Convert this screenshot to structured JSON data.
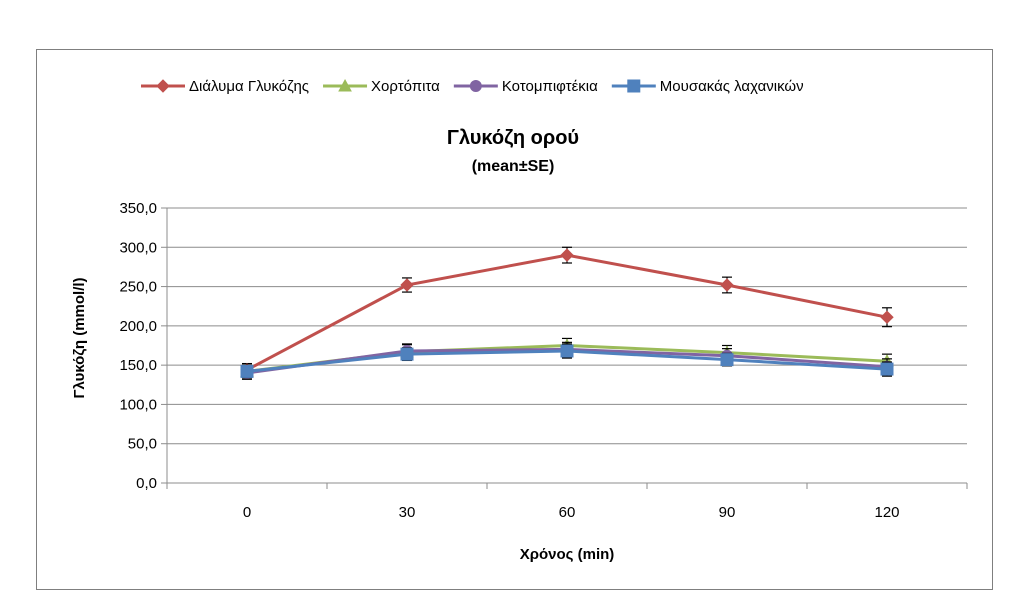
{
  "chart_data": {
    "type": "line",
    "title": "Γλυκόζη ορού",
    "subtitle": "(mean±SE)",
    "xlabel": "Χρόνος (min)",
    "ylabel": "Γλυκόζη (mmol/l)",
    "categories": [
      "0",
      "30",
      "60",
      "90",
      "120"
    ],
    "ylim": [
      0,
      350
    ],
    "yticks": [
      "0,0",
      "50,0",
      "100,0",
      "150,0",
      "200,0",
      "250,0",
      "300,0",
      "350,0"
    ],
    "ytick_values": [
      0,
      50,
      100,
      150,
      200,
      250,
      300,
      350
    ],
    "grid": true,
    "legend_position": "top",
    "series": [
      {
        "name": "Διάλυμα Γλυκόζης",
        "color": "#c0504d",
        "marker": "diamond",
        "values": [
          144,
          252,
          290,
          252,
          211
        ],
        "errors": [
          8,
          9,
          10,
          10,
          12
        ]
      },
      {
        "name": "Χορτόπιτα",
        "color": "#9bbb59",
        "marker": "triangle",
        "values": [
          142,
          167,
          175,
          166,
          155
        ],
        "errors": [
          8,
          9,
          9,
          9,
          9
        ]
      },
      {
        "name": "Κοτομπιφτέκια",
        "color": "#8064a2",
        "marker": "circle",
        "values": [
          140,
          168,
          170,
          162,
          148
        ],
        "errors": [
          8,
          9,
          9,
          9,
          10
        ]
      },
      {
        "name": "Μουσακάς λαχανικών",
        "color": "#4f81bd",
        "marker": "square",
        "values": [
          142,
          164,
          168,
          157,
          145
        ],
        "errors": [
          8,
          8,
          9,
          8,
          9
        ]
      }
    ]
  }
}
